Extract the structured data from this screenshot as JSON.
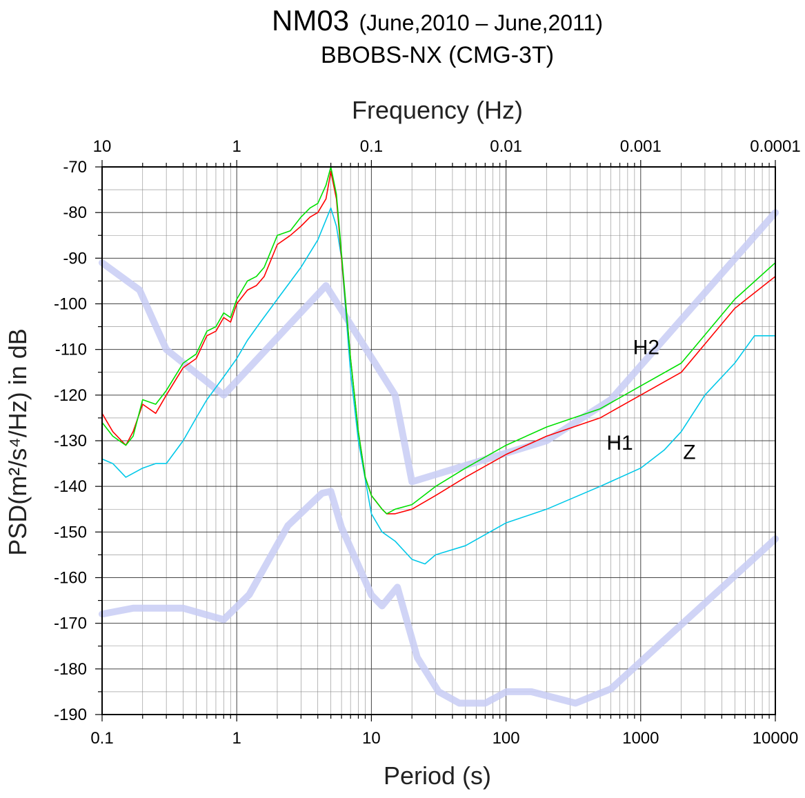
{
  "title": {
    "station": "NM03",
    "period": "(June,2010 – June,2011)",
    "subtitle": "BBOBS-NX (CMG-3T)"
  },
  "chart_data": {
    "type": "line",
    "x_scale": "log",
    "xlabel": "Period (s)",
    "xlim": [
      0.1,
      10000
    ],
    "x_ticks": [
      "0.1",
      "1",
      "10",
      "100",
      "1000",
      "10000"
    ],
    "x_tick_values": [
      0.1,
      1,
      10,
      100,
      1000,
      10000
    ],
    "top_xlabel": "Frequency (Hz)",
    "top_x_ticks": [
      "10",
      "1",
      "0.1",
      "0.01",
      "0.001",
      "0.0001"
    ],
    "ylabel": "PSD(m²/s⁴/Hz) in dB",
    "ylim": [
      -190,
      -70
    ],
    "y_ticks": [
      "-70",
      "-80",
      "-90",
      "-100",
      "-110",
      "-120",
      "-130",
      "-140",
      "-150",
      "-160",
      "-170",
      "-180",
      "-190"
    ],
    "y_tick_values": [
      -70,
      -80,
      -90,
      -100,
      -110,
      -120,
      -130,
      -140,
      -150,
      -160,
      -170,
      -180,
      -190
    ],
    "grid": true,
    "colors": {
      "H1": "#ff0000",
      "H2": "#00e000",
      "Z": "#00c8e8",
      "model": "#c8cdf5"
    },
    "series": [
      {
        "name": "H1",
        "color": "#ff0000",
        "points": [
          [
            0.1,
            -124
          ],
          [
            0.12,
            -128
          ],
          [
            0.15,
            -131
          ],
          [
            0.17,
            -128
          ],
          [
            0.2,
            -122
          ],
          [
            0.25,
            -124
          ],
          [
            0.3,
            -120
          ],
          [
            0.4,
            -114
          ],
          [
            0.5,
            -112
          ],
          [
            0.6,
            -107
          ],
          [
            0.7,
            -106
          ],
          [
            0.8,
            -103
          ],
          [
            0.9,
            -104
          ],
          [
            1.0,
            -100
          ],
          [
            1.2,
            -97
          ],
          [
            1.4,
            -96
          ],
          [
            1.6,
            -94
          ],
          [
            2.0,
            -87
          ],
          [
            2.5,
            -85
          ],
          [
            3.0,
            -83
          ],
          [
            3.5,
            -81
          ],
          [
            4.0,
            -80
          ],
          [
            4.6,
            -77
          ],
          [
            5.0,
            -71
          ],
          [
            5.5,
            -77
          ],
          [
            6.0,
            -90
          ],
          [
            7.0,
            -112
          ],
          [
            8.0,
            -128
          ],
          [
            9.0,
            -138
          ],
          [
            10.0,
            -142
          ],
          [
            12.0,
            -145
          ],
          [
            13.0,
            -146
          ],
          [
            15.0,
            -146
          ],
          [
            20.0,
            -145
          ],
          [
            30.0,
            -142
          ],
          [
            50.0,
            -138
          ],
          [
            100.0,
            -133
          ],
          [
            200.0,
            -129
          ],
          [
            500.0,
            -125
          ],
          [
            1000.0,
            -120
          ],
          [
            2000.0,
            -115
          ],
          [
            5000.0,
            -101
          ],
          [
            10000.0,
            -94
          ]
        ]
      },
      {
        "name": "H2",
        "color": "#00e000",
        "points": [
          [
            0.1,
            -126
          ],
          [
            0.12,
            -129
          ],
          [
            0.15,
            -131
          ],
          [
            0.17,
            -129
          ],
          [
            0.2,
            -121
          ],
          [
            0.25,
            -122
          ],
          [
            0.3,
            -119
          ],
          [
            0.4,
            -113
          ],
          [
            0.5,
            -111
          ],
          [
            0.6,
            -106
          ],
          [
            0.7,
            -105
          ],
          [
            0.8,
            -102
          ],
          [
            0.9,
            -103
          ],
          [
            1.0,
            -99
          ],
          [
            1.2,
            -95
          ],
          [
            1.4,
            -94
          ],
          [
            1.6,
            -92
          ],
          [
            2.0,
            -85
          ],
          [
            2.5,
            -84
          ],
          [
            3.0,
            -81
          ],
          [
            3.5,
            -79
          ],
          [
            4.0,
            -78
          ],
          [
            4.6,
            -74
          ],
          [
            5.0,
            -70
          ],
          [
            5.5,
            -76
          ],
          [
            6.0,
            -89
          ],
          [
            7.0,
            -112
          ],
          [
            8.0,
            -128
          ],
          [
            9.0,
            -138
          ],
          [
            10.0,
            -142
          ],
          [
            12.0,
            -145
          ],
          [
            13.0,
            -146
          ],
          [
            15.0,
            -145
          ],
          [
            20.0,
            -144
          ],
          [
            30.0,
            -140
          ],
          [
            50.0,
            -136
          ],
          [
            100.0,
            -131
          ],
          [
            200.0,
            -127
          ],
          [
            500.0,
            -123
          ],
          [
            1000.0,
            -118
          ],
          [
            2000.0,
            -113
          ],
          [
            5000.0,
            -99
          ],
          [
            10000.0,
            -91
          ]
        ]
      },
      {
        "name": "Z",
        "color": "#00c8e8",
        "points": [
          [
            0.1,
            -134
          ],
          [
            0.12,
            -135
          ],
          [
            0.15,
            -138
          ],
          [
            0.2,
            -136
          ],
          [
            0.25,
            -135
          ],
          [
            0.3,
            -135
          ],
          [
            0.4,
            -130
          ],
          [
            0.5,
            -125
          ],
          [
            0.6,
            -121
          ],
          [
            0.8,
            -116
          ],
          [
            1.0,
            -112
          ],
          [
            1.2,
            -108
          ],
          [
            1.5,
            -104
          ],
          [
            2.0,
            -99
          ],
          [
            3.0,
            -92
          ],
          [
            4.0,
            -86
          ],
          [
            5.0,
            -79
          ],
          [
            5.5,
            -83
          ],
          [
            6.0,
            -90
          ],
          [
            7.0,
            -115
          ],
          [
            8.0,
            -130
          ],
          [
            10.0,
            -146
          ],
          [
            12.0,
            -150
          ],
          [
            15.0,
            -152
          ],
          [
            20.0,
            -156
          ],
          [
            25.0,
            -157
          ],
          [
            30.0,
            -155
          ],
          [
            50.0,
            -153
          ],
          [
            100.0,
            -148
          ],
          [
            200.0,
            -145
          ],
          [
            500.0,
            -140
          ],
          [
            1000.0,
            -136
          ],
          [
            1500.0,
            -132
          ],
          [
            2000.0,
            -128
          ],
          [
            3000.0,
            -120
          ],
          [
            5000.0,
            -113
          ],
          [
            7000.0,
            -107
          ],
          [
            10000.0,
            -107
          ]
        ]
      },
      {
        "name": "",
        "color": "#c8cdf5",
        "points": [
          [
            0.1,
            -91
          ],
          [
            0.19,
            -97
          ],
          [
            0.3,
            -110
          ],
          [
            0.8,
            -120
          ],
          [
            4.6,
            -96
          ],
          [
            15.0,
            -120
          ],
          [
            20.0,
            -139
          ],
          [
            200.0,
            -130
          ],
          [
            600.0,
            -121
          ],
          [
            10000.0,
            -80
          ]
        ]
      },
      {
        "name": "",
        "color": "#c8cdf5",
        "points": [
          [
            0.1,
            -168
          ],
          [
            0.17,
            -166.7
          ],
          [
            0.4,
            -166.7
          ],
          [
            0.8,
            -169.2
          ],
          [
            1.24,
            -163.7
          ],
          [
            2.4,
            -148.6
          ],
          [
            4.3,
            -141.5
          ],
          [
            5.0,
            -141.1
          ],
          [
            6.0,
            -149
          ],
          [
            10.0,
            -163.8
          ],
          [
            12.0,
            -166.2
          ],
          [
            15.6,
            -162.1
          ],
          [
            21.9,
            -177.5
          ],
          [
            31.6,
            -185
          ],
          [
            45.0,
            -187.5
          ],
          [
            70.0,
            -187.5
          ],
          [
            101.0,
            -185
          ],
          [
            154.0,
            -185
          ],
          [
            328.0,
            -187.5
          ],
          [
            600.0,
            -184.4
          ],
          [
            10000.0,
            -151.5
          ]
        ]
      }
    ],
    "annotations": [
      {
        "text": "H2",
        "x": 1100,
        "y": -111
      },
      {
        "text": "H1",
        "x": 700,
        "y": -132
      },
      {
        "text": "Z",
        "x": 2300,
        "y": -134
      }
    ]
  }
}
